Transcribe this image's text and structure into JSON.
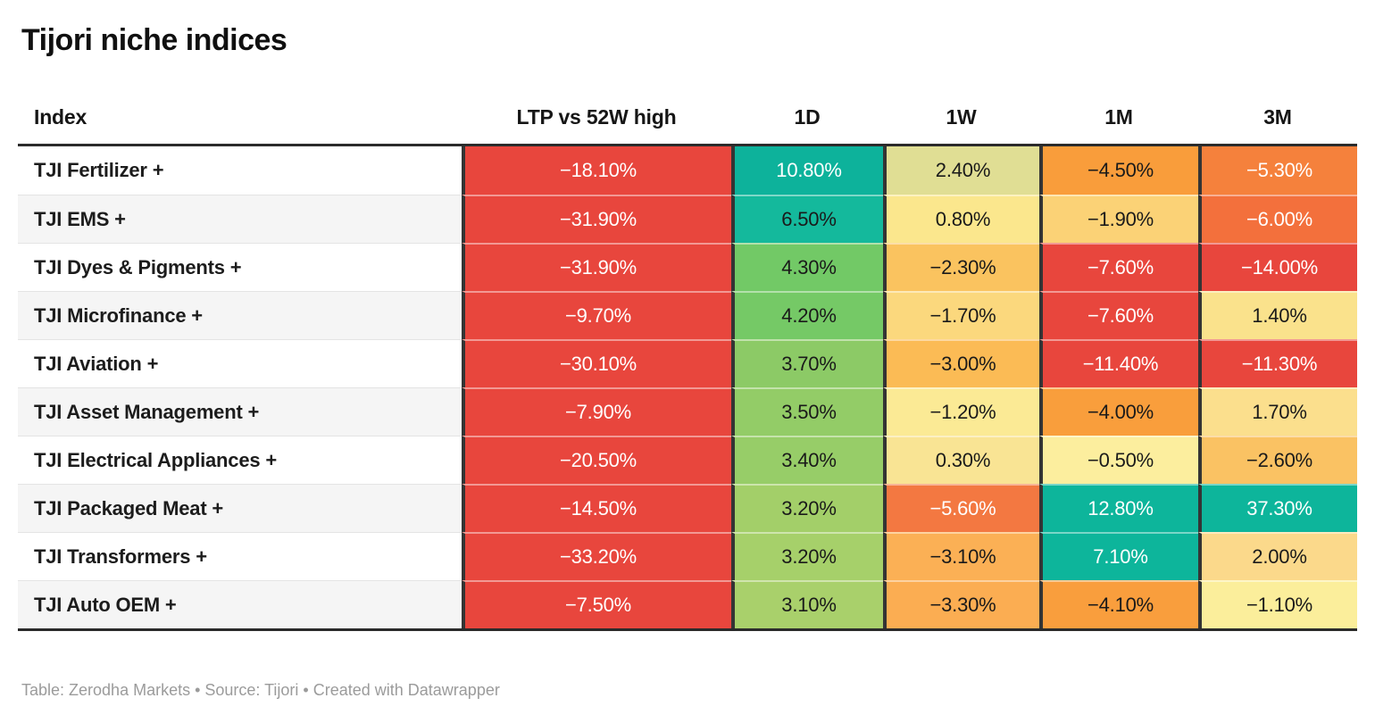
{
  "title": "Tijori niche indices",
  "footer": "Table: Zerodha Markets • Source: Tijori • Created with Datawrapper",
  "chart_data": {
    "type": "table",
    "title": "Tijori niche indices",
    "columns": [
      "Index",
      "LTP vs 52W high",
      "1D",
      "1W",
      "1M",
      "3M"
    ],
    "palette": {
      "negative_strong": "#e8463d",
      "positive_strong": "#0db59b",
      "neutral_mid": "#fcee9e",
      "dark_text": "#1a1a1a",
      "light_text": "#ffffff"
    },
    "rows": [
      {
        "index": "TJI Fertilizer +",
        "cells": [
          {
            "v": "−18.10%",
            "bg": "#e8463d",
            "fg": "#ffffff"
          },
          {
            "v": "10.80%",
            "bg": "#0db29b",
            "fg": "#ffffff"
          },
          {
            "v": "2.40%",
            "bg": "#e0de94",
            "fg": "#1a1a1a"
          },
          {
            "v": "−4.50%",
            "bg": "#f99d3b",
            "fg": "#1a1a1a"
          },
          {
            "v": "−5.30%",
            "bg": "#f5813c",
            "fg": "#ffffff"
          }
        ]
      },
      {
        "index": "TJI EMS +",
        "cells": [
          {
            "v": "−31.90%",
            "bg": "#e8463d",
            "fg": "#ffffff"
          },
          {
            "v": "6.50%",
            "bg": "#14b99c",
            "fg": "#1a1a1a"
          },
          {
            "v": "0.80%",
            "bg": "#fbe78d",
            "fg": "#1a1a1a"
          },
          {
            "v": "−1.90%",
            "bg": "#fbd276",
            "fg": "#1a1a1a"
          },
          {
            "v": "−6.00%",
            "bg": "#f3703c",
            "fg": "#ffffff"
          }
        ]
      },
      {
        "index": "TJI Dyes & Pigments +",
        "cells": [
          {
            "v": "−31.90%",
            "bg": "#e8463d",
            "fg": "#ffffff"
          },
          {
            "v": "4.30%",
            "bg": "#72c966",
            "fg": "#1a1a1a"
          },
          {
            "v": "−2.30%",
            "bg": "#fac35f",
            "fg": "#1a1a1a"
          },
          {
            "v": "−7.60%",
            "bg": "#e8463d",
            "fg": "#ffffff"
          },
          {
            "v": "−14.00%",
            "bg": "#e8463d",
            "fg": "#ffffff"
          }
        ]
      },
      {
        "index": "TJI Microfinance +",
        "cells": [
          {
            "v": "−9.70%",
            "bg": "#e8463d",
            "fg": "#ffffff"
          },
          {
            "v": "4.20%",
            "bg": "#75c966",
            "fg": "#1a1a1a"
          },
          {
            "v": "−1.70%",
            "bg": "#fbd87d",
            "fg": "#1a1a1a"
          },
          {
            "v": "−7.60%",
            "bg": "#e8463d",
            "fg": "#ffffff"
          },
          {
            "v": "1.40%",
            "bg": "#fae28c",
            "fg": "#1a1a1a"
          }
        ]
      },
      {
        "index": "TJI Aviation +",
        "cells": [
          {
            "v": "−30.10%",
            "bg": "#e8463d",
            "fg": "#ffffff"
          },
          {
            "v": "3.70%",
            "bg": "#8cca66",
            "fg": "#1a1a1a"
          },
          {
            "v": "−3.00%",
            "bg": "#fbbb55",
            "fg": "#1a1a1a"
          },
          {
            "v": "−11.40%",
            "bg": "#e8463d",
            "fg": "#ffffff"
          },
          {
            "v": "−11.30%",
            "bg": "#e8463d",
            "fg": "#ffffff"
          }
        ]
      },
      {
        "index": "TJI Asset Management +",
        "cells": [
          {
            "v": "−7.90%",
            "bg": "#e8463d",
            "fg": "#ffffff"
          },
          {
            "v": "3.50%",
            "bg": "#93cc67",
            "fg": "#1a1a1a"
          },
          {
            "v": "−1.20%",
            "bg": "#fbea95",
            "fg": "#1a1a1a"
          },
          {
            "v": "−4.00%",
            "bg": "#f99e3c",
            "fg": "#1a1a1a"
          },
          {
            "v": "1.70%",
            "bg": "#fbdf8d",
            "fg": "#1a1a1a"
          }
        ]
      },
      {
        "index": "TJI Electrical Appliances +",
        "cells": [
          {
            "v": "−20.50%",
            "bg": "#e8463d",
            "fg": "#ffffff"
          },
          {
            "v": "3.40%",
            "bg": "#97cd68",
            "fg": "#1a1a1a"
          },
          {
            "v": "0.30%",
            "bg": "#f9e494",
            "fg": "#1a1a1a"
          },
          {
            "v": "−0.50%",
            "bg": "#fcee9e",
            "fg": "#1a1a1a"
          },
          {
            "v": "−2.60%",
            "bg": "#fac263",
            "fg": "#1a1a1a"
          }
        ]
      },
      {
        "index": "TJI Packaged Meat +",
        "cells": [
          {
            "v": "−14.50%",
            "bg": "#e8463d",
            "fg": "#ffffff"
          },
          {
            "v": "3.20%",
            "bg": "#a3cf69",
            "fg": "#1a1a1a"
          },
          {
            "v": "−5.60%",
            "bg": "#f37841",
            "fg": "#ffffff"
          },
          {
            "v": "12.80%",
            "bg": "#0db59b",
            "fg": "#ffffff"
          },
          {
            "v": "37.30%",
            "bg": "#0db59b",
            "fg": "#ffffff"
          }
        ]
      },
      {
        "index": "TJI Transformers +",
        "cells": [
          {
            "v": "−33.20%",
            "bg": "#e8463d",
            "fg": "#ffffff"
          },
          {
            "v": "3.20%",
            "bg": "#a6d06a",
            "fg": "#1a1a1a"
          },
          {
            "v": "−3.10%",
            "bg": "#fbb055",
            "fg": "#1a1a1a"
          },
          {
            "v": "7.10%",
            "bg": "#0db59b",
            "fg": "#ffffff"
          },
          {
            "v": "2.00%",
            "bg": "#fbd98b",
            "fg": "#1a1a1a"
          }
        ]
      },
      {
        "index": "TJI Auto OEM +",
        "cells": [
          {
            "v": "−7.50%",
            "bg": "#e8463d",
            "fg": "#ffffff"
          },
          {
            "v": "3.10%",
            "bg": "#a9d06b",
            "fg": "#1a1a1a"
          },
          {
            "v": "−3.30%",
            "bg": "#fbad52",
            "fg": "#1a1a1a"
          },
          {
            "v": "−4.10%",
            "bg": "#f99e3d",
            "fg": "#1a1a1a"
          },
          {
            "v": "−1.10%",
            "bg": "#fbee9b",
            "fg": "#1a1a1a"
          }
        ]
      }
    ]
  }
}
